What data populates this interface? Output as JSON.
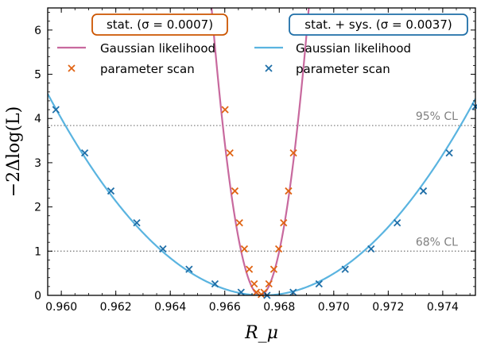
{
  "chart_data": {
    "type": "line",
    "xlabel": "R_μ",
    "ylabel": "−2Δlog(L)",
    "xlim": [
      0.9595,
      0.9752
    ],
    "ylim": [
      0,
      6.5
    ],
    "xticks": [
      0.96,
      0.962,
      0.964,
      0.966,
      0.968,
      0.97,
      0.972,
      0.974
    ],
    "xtick_labels": [
      "0.960",
      "0.962",
      "0.964",
      "0.966",
      "0.968",
      "0.970",
      "0.972",
      "0.974"
    ],
    "yticks": [
      0,
      1,
      2,
      3,
      4,
      5,
      6
    ],
    "ytick_labels": [
      "0",
      "1",
      "2",
      "3",
      "4",
      "5",
      "6"
    ],
    "grid": false,
    "reference_lines": [
      {
        "y": 3.84,
        "label": "95% CL"
      },
      {
        "y": 1.0,
        "label": "68% CL"
      }
    ],
    "legends": [
      {
        "position": "top-left",
        "title": "stat. (σ = 0.0007)",
        "color": "#cc5500",
        "entries": [
          "Gaussian likelihood",
          "parameter scan"
        ]
      },
      {
        "position": "top-right",
        "title": "stat. + sys. (σ = 0.0037)",
        "color": "#1f6fa8",
        "entries": [
          "Gaussian likelihood",
          "parameter scan"
        ]
      }
    ],
    "series": [
      {
        "name": "Gaussian likelihood",
        "group": "stat.",
        "kind": "line",
        "color": "#c8699e",
        "center": 0.9673,
        "sigma": 0.0007
      },
      {
        "name": "parameter scan",
        "group": "stat.",
        "kind": "scatter",
        "color": "#e06414",
        "x": [
          0.96601,
          0.96619,
          0.96637,
          0.96654,
          0.96672,
          0.9669,
          0.96708,
          0.96716,
          0.96734,
          0.96744,
          0.96762,
          0.9678,
          0.96798,
          0.96816,
          0.96834,
          0.96852
        ],
        "y": [
          4.2,
          3.22,
          2.36,
          1.64,
          1.05,
          0.59,
          0.26,
          0.07,
          0.02,
          0.07,
          0.26,
          0.59,
          1.05,
          1.64,
          2.36,
          3.22
        ]
      },
      {
        "name": "Gaussian likelihood",
        "group": "stat. + sys.",
        "kind": "line",
        "color": "#5ab4e0",
        "center": 0.9674,
        "sigma": 0.0037
      },
      {
        "name": "parameter scan",
        "group": "stat. + sys.",
        "kind": "scatter",
        "color": "#1f6fa8",
        "x": [
          0.9598,
          0.96086,
          0.96182,
          0.96277,
          0.96373,
          0.96469,
          0.96564,
          0.9666,
          0.96755,
          0.96851,
          0.96946,
          0.97042,
          0.97137,
          0.97233,
          0.97329,
          0.97424,
          0.9752
        ],
        "y": [
          4.2,
          3.22,
          2.36,
          1.64,
          1.05,
          0.59,
          0.26,
          0.07,
          0.0,
          0.07,
          0.26,
          0.59,
          1.05,
          1.64,
          2.36,
          3.22,
          4.27
        ]
      }
    ]
  }
}
